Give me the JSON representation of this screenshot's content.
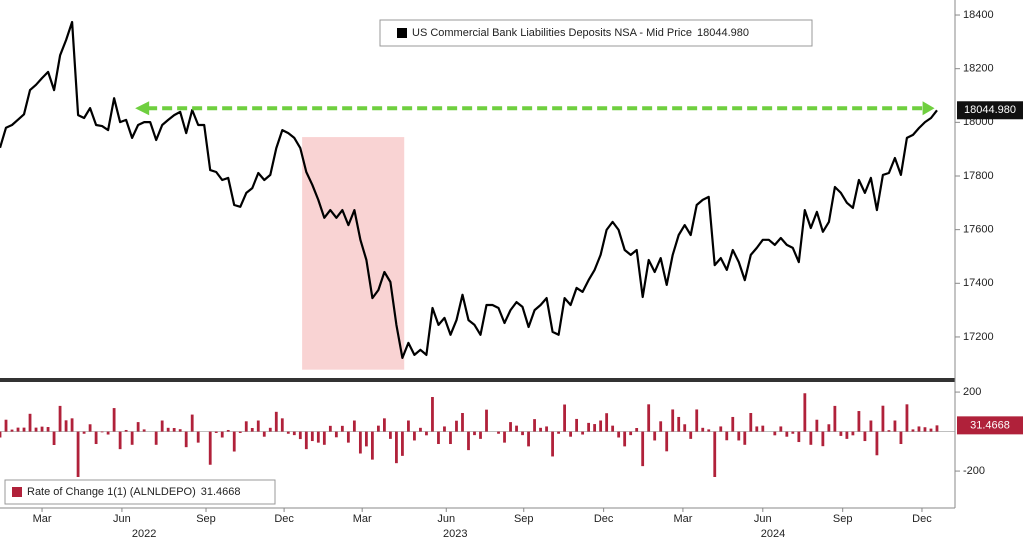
{
  "chart_data": [
    {
      "type": "line",
      "series": [
        {
          "name": "US Commercial Bank Liabilities Deposits NSA - Mid Price",
          "color": "#000000",
          "values": [
            17905,
            17980,
            17990,
            18010,
            18030,
            18120,
            18140,
            18165,
            18188,
            18120,
            18250,
            18307,
            18374,
            18027,
            18016,
            18053,
            17990,
            17986,
            17971,
            18090,
            18001,
            18009,
            17942,
            17990,
            18001,
            18001,
            17934,
            17990,
            18009,
            18027,
            18039,
            17960,
            18046,
            17990,
            17990,
            17822,
            17815,
            17785,
            17793,
            17692,
            17685,
            17737,
            17755,
            17811,
            17785,
            17804,
            17904,
            17971,
            17960,
            17942,
            17904,
            17815,
            17767,
            17711,
            17644,
            17673,
            17644,
            17673,
            17617,
            17673,
            17562,
            17487,
            17345,
            17375,
            17442,
            17405,
            17245,
            17122,
            17178,
            17133,
            17152,
            17133,
            17308,
            17245,
            17271,
            17208,
            17263,
            17357,
            17263,
            17245,
            17208,
            17319,
            17319,
            17308,
            17252,
            17300,
            17330,
            17312,
            17237,
            17300,
            17319,
            17345,
            17219,
            17208,
            17345,
            17319,
            17383,
            17368,
            17412,
            17450,
            17506,
            17599,
            17629,
            17599,
            17524,
            17506,
            17524,
            17349,
            17487,
            17442,
            17494,
            17394,
            17506,
            17580,
            17617,
            17580,
            17692,
            17711,
            17722,
            17468,
            17494,
            17450,
            17524,
            17479,
            17412,
            17506,
            17532,
            17562,
            17562,
            17543,
            17569,
            17543,
            17532,
            17479,
            17673,
            17606,
            17666,
            17592,
            17629,
            17759,
            17737,
            17700,
            17681,
            17785,
            17737,
            17793,
            17673,
            17804,
            17811,
            17867,
            17804,
            17942,
            17953,
            17979,
            18001,
            18016,
            18044.98
          ],
          "last_label": "18044.980"
        }
      ],
      "xlim": [
        0,
        159
      ],
      "ylim": [
        17047,
        18456
      ],
      "yticks": [
        17200,
        17400,
        17600,
        17800,
        18000,
        18200,
        18400
      ],
      "shaded_region": {
        "x": [
          50.3,
          67.3
        ],
        "y": [
          17078,
          17945
        ],
        "color": "#f9d3d3"
      },
      "arrow": {
        "x": [
          22.5,
          155.6
        ],
        "color": "#6fcf3f"
      }
    },
    {
      "type": "bar",
      "series": [
        {
          "name": "Rate of Change 1(1) (ALNLDEPO)",
          "color": "#b0213a",
          "values": [
            -30,
            60,
            10,
            20,
            20,
            90,
            20,
            25,
            23,
            -68,
            130,
            57,
            67,
            -230,
            -11,
            37,
            -63,
            -4,
            -15,
            119,
            -89,
            8,
            -67,
            48,
            11,
            0,
            -67,
            56,
            19,
            18,
            12,
            -79,
            86,
            -56,
            0,
            -168,
            -7,
            -30,
            8,
            -101,
            -7,
            52,
            18,
            56,
            -26,
            19,
            100,
            67,
            -11,
            -18,
            -38,
            -89,
            -48,
            -56,
            -67,
            29,
            -29,
            29,
            -56,
            56,
            -111,
            -75,
            -142,
            30,
            67,
            -37,
            -160,
            -123,
            56,
            -45,
            19,
            -19,
            175,
            -63,
            26,
            -63,
            55,
            94,
            -94,
            -18,
            -37,
            111,
            0,
            -11,
            -56,
            48,
            30,
            -18,
            -75,
            63,
            19,
            26,
            -126,
            -11,
            137,
            -26,
            64,
            -15,
            44,
            38,
            56,
            93,
            30,
            -30,
            -75,
            -18,
            18,
            -175,
            138,
            -45,
            52,
            -100,
            112,
            74,
            37,
            -37,
            112,
            19,
            11,
            -230,
            26,
            -44,
            74,
            -45,
            -67,
            94,
            26,
            30,
            0,
            -19,
            26,
            -26,
            -11,
            -53,
            194,
            -67,
            60,
            -74,
            37,
            130,
            -22,
            -37,
            -19,
            104,
            -48,
            56,
            -120,
            131,
            7,
            56,
            -63,
            138,
            11,
            26,
            22,
            15,
            31.4668
          ],
          "last_label": "31.4668"
        }
      ],
      "xlim": [
        0,
        159
      ],
      "ylim": [
        -387,
        251
      ],
      "yticks": [
        -200,
        200
      ],
      "xticks": [
        {
          "value": 7,
          "label": "Mar"
        },
        {
          "value": 20.3,
          "label": "Jun"
        },
        {
          "value": 34.3,
          "label": "Sep"
        },
        {
          "value": 47.3,
          "label": "Dec"
        },
        {
          "value": 60.3,
          "label": "Mar"
        },
        {
          "value": 74.3,
          "label": "Jun"
        },
        {
          "value": 87.2,
          "label": "Sep"
        },
        {
          "value": 100.5,
          "label": "Dec"
        },
        {
          "value": 113.7,
          "label": "Mar"
        },
        {
          "value": 127,
          "label": "Jun"
        },
        {
          "value": 140.3,
          "label": "Sep"
        },
        {
          "value": 153.5,
          "label": "Dec"
        }
      ],
      "year_labels": [
        {
          "value": 24,
          "label": "2022"
        },
        {
          "value": 75.8,
          "label": "2023"
        },
        {
          "value": 128.7,
          "label": "2024"
        }
      ]
    }
  ]
}
